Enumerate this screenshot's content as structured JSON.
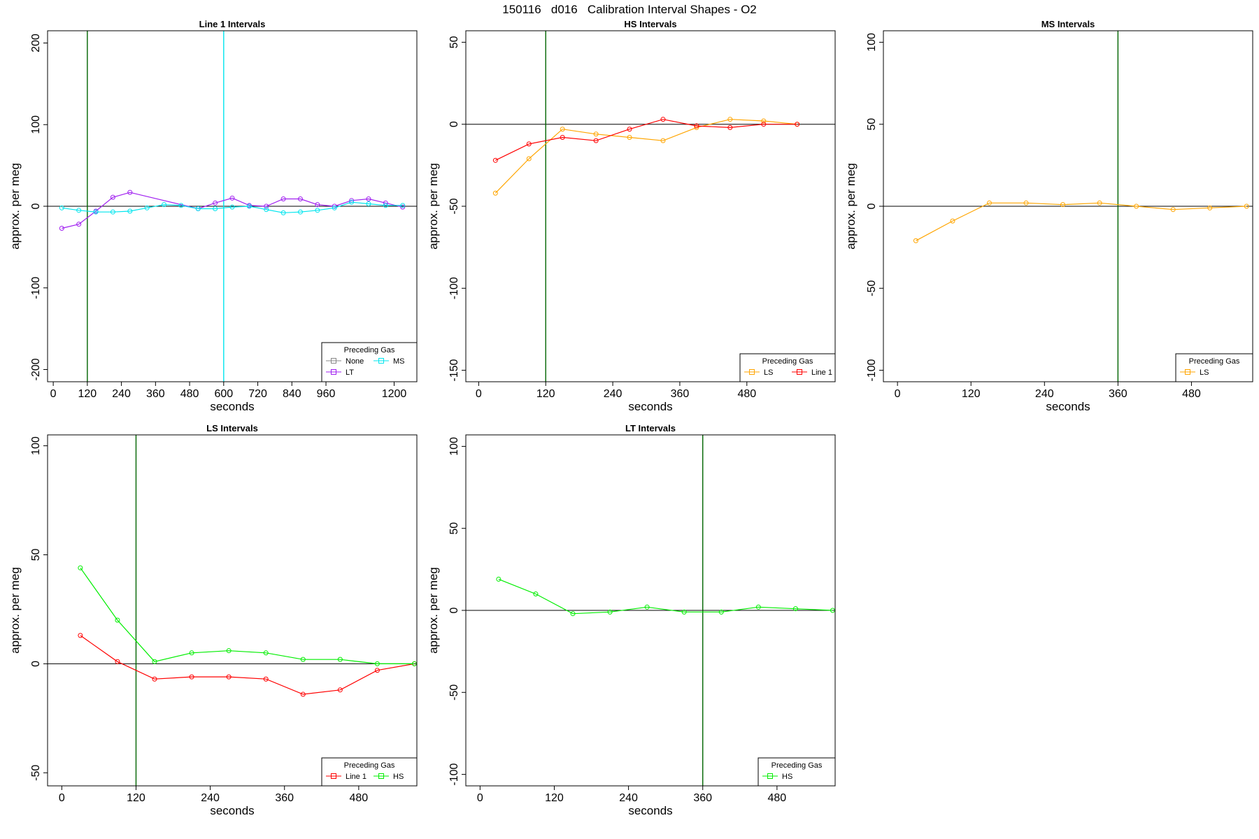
{
  "figure": {
    "title": "150116   d016   Calibration Interval Shapes - O2"
  },
  "colors": {
    "None": "#888888",
    "LT": "#a020f0",
    "MS": "#00e5ee",
    "LS": "#ffa500",
    "Line 1": "#ff0000",
    "HS": "#00ee00",
    "axis": "#000000",
    "marker_line": "#006400"
  },
  "chart_data": [
    {
      "type": "line",
      "title": "Line 1 Intervals",
      "xlabel": "seconds",
      "ylabel": "approx. per meg",
      "xlim": [
        -20,
        1280
      ],
      "ylim": [
        -215,
        215
      ],
      "xticks": [
        0,
        120,
        240,
        360,
        480,
        600,
        720,
        840,
        960,
        1200
      ],
      "yticks": [
        -200,
        -100,
        0,
        100,
        200
      ],
      "hline": 0,
      "vlines": [
        {
          "x": 120,
          "color": "#006400"
        },
        {
          "x": 600,
          "color": "#00e5ee"
        }
      ],
      "legend": {
        "title": "Preceding Gas",
        "position": "bottom-right",
        "entries": [
          "None",
          "LT",
          "MS"
        ],
        "columns": 2
      },
      "series": [
        {
          "name": "LT",
          "x": [
            30,
            90,
            150,
            210,
            270,
            510,
            570,
            630,
            690,
            750,
            810,
            870,
            930,
            990,
            1050,
            1110,
            1170,
            1230
          ],
          "y": [
            -27,
            -22,
            -6,
            11,
            17,
            -3,
            4,
            10,
            1,
            0,
            9,
            9,
            2,
            0,
            7,
            9,
            4,
            -1
          ]
        },
        {
          "name": "MS",
          "x": [
            30,
            90,
            150,
            210,
            270,
            330,
            390,
            450,
            510,
            570,
            630,
            690,
            750,
            810,
            870,
            930,
            990,
            1050,
            1110,
            1170,
            1230
          ],
          "y": [
            -2,
            -5,
            -7,
            -7,
            -6,
            -2,
            2,
            1,
            -3,
            -3,
            -1,
            0,
            -4,
            -8,
            -7,
            -5,
            -2,
            5,
            3,
            1,
            1
          ]
        }
      ]
    },
    {
      "type": "line",
      "title": "HS Intervals",
      "xlabel": "seconds",
      "ylabel": "approx. per meg",
      "xlim": [
        -23,
        638
      ],
      "ylim": [
        -157,
        57
      ],
      "xticks": [
        0,
        120,
        240,
        360,
        480
      ],
      "yticks": [
        -150,
        -100,
        -50,
        0,
        50
      ],
      "hline": 0,
      "vlines": [
        {
          "x": 120,
          "color": "#006400"
        }
      ],
      "legend": {
        "title": "Preceding Gas",
        "position": "bottom-right",
        "entries": [
          "LS",
          "Line 1"
        ],
        "columns": 2
      },
      "series": [
        {
          "name": "LS",
          "x": [
            30,
            90,
            150,
            210,
            270,
            330,
            390,
            450,
            510,
            570
          ],
          "y": [
            -42,
            -21,
            -3,
            -6,
            -8,
            -10,
            -2,
            3,
            2,
            0
          ]
        },
        {
          "name": "Line 1",
          "x": [
            30,
            90,
            150,
            210,
            270,
            330,
            390,
            450,
            510,
            570
          ],
          "y": [
            -22,
            -12,
            -8,
            -10,
            -3,
            3,
            -1,
            -2,
            0,
            0
          ]
        }
      ]
    },
    {
      "type": "line",
      "title": "MS Intervals",
      "xlabel": "seconds",
      "ylabel": "approx. per meg",
      "xlim": [
        -23,
        580
      ],
      "ylim": [
        -107,
        107
      ],
      "xticks": [
        0,
        120,
        240,
        360,
        480
      ],
      "yticks": [
        -100,
        -50,
        0,
        50,
        100
      ],
      "hline": 0,
      "vlines": [
        {
          "x": 360,
          "color": "#006400"
        }
      ],
      "legend": {
        "title": "Preceding Gas",
        "position": "bottom-right",
        "entries": [
          "LS"
        ],
        "columns": 1
      },
      "series": [
        {
          "name": "LS",
          "x": [
            30,
            90,
            150,
            210,
            270,
            330,
            390,
            450,
            510,
            570
          ],
          "y": [
            -21,
            -9,
            2,
            2,
            1,
            2,
            0,
            -2,
            -1,
            0
          ]
        }
      ]
    },
    {
      "type": "line",
      "title": "LS Intervals",
      "xlabel": "seconds",
      "ylabel": "approx. per meg",
      "xlim": [
        -23,
        574
      ],
      "ylim": [
        -56,
        105
      ],
      "xticks": [
        0,
        120,
        240,
        360,
        480
      ],
      "yticks": [
        -50,
        0,
        50,
        100
      ],
      "hline": 0,
      "vlines": [
        {
          "x": 120,
          "color": "#006400"
        }
      ],
      "legend": {
        "title": "Preceding Gas",
        "position": "bottom-right",
        "entries": [
          "Line 1",
          "HS"
        ],
        "columns": 2
      },
      "series": [
        {
          "name": "Line 1",
          "x": [
            30,
            90,
            150,
            210,
            270,
            330,
            390,
            450,
            510,
            570
          ],
          "y": [
            13,
            1,
            -7,
            -6,
            -6,
            -7,
            -14,
            -12,
            -3,
            0
          ]
        },
        {
          "name": "HS",
          "x": [
            30,
            90,
            150,
            210,
            270,
            330,
            390,
            450,
            510,
            570
          ],
          "y": [
            44,
            20,
            1,
            5,
            6,
            5,
            2,
            2,
            0,
            0
          ]
        }
      ]
    },
    {
      "type": "line",
      "title": "LT Intervals",
      "xlabel": "seconds",
      "ylabel": "approx. per meg",
      "xlim": [
        -23,
        574
      ],
      "ylim": [
        -107,
        107
      ],
      "xticks": [
        0,
        120,
        240,
        360,
        480
      ],
      "yticks": [
        -100,
        -50,
        0,
        50,
        100
      ],
      "hline": 0,
      "vlines": [
        {
          "x": 360,
          "color": "#006400"
        }
      ],
      "legend": {
        "title": "Preceding Gas",
        "position": "bottom-right",
        "entries": [
          "HS"
        ],
        "columns": 1
      },
      "series": [
        {
          "name": "HS",
          "x": [
            30,
            90,
            150,
            210,
            270,
            330,
            390,
            450,
            510,
            570
          ],
          "y": [
            19,
            10,
            -2,
            -1,
            2,
            -1,
            -1,
            2,
            1,
            0
          ]
        }
      ]
    }
  ]
}
